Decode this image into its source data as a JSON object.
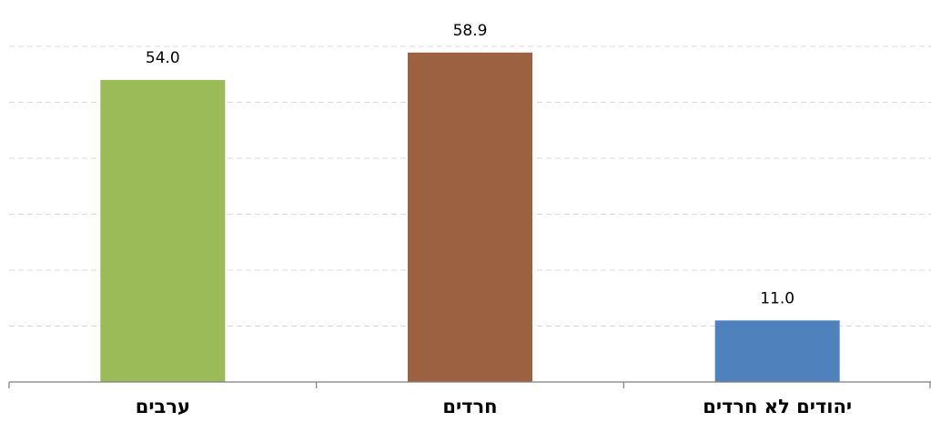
{
  "chart_data": {
    "type": "bar",
    "categories": [
      "ערבים",
      "חרדים",
      "יהודים לא חרדים"
    ],
    "values": [
      54.0,
      58.9,
      11.0
    ],
    "value_labels": [
      "54.0",
      "58.9",
      "11.0"
    ],
    "colors": [
      "#9bbb59",
      "#9c6141",
      "#4f81bd"
    ],
    "title": "",
    "xlabel": "",
    "ylabel": "",
    "ylim": [
      0,
      60
    ],
    "grid": true,
    "grid_step": 10,
    "legend": "none"
  }
}
